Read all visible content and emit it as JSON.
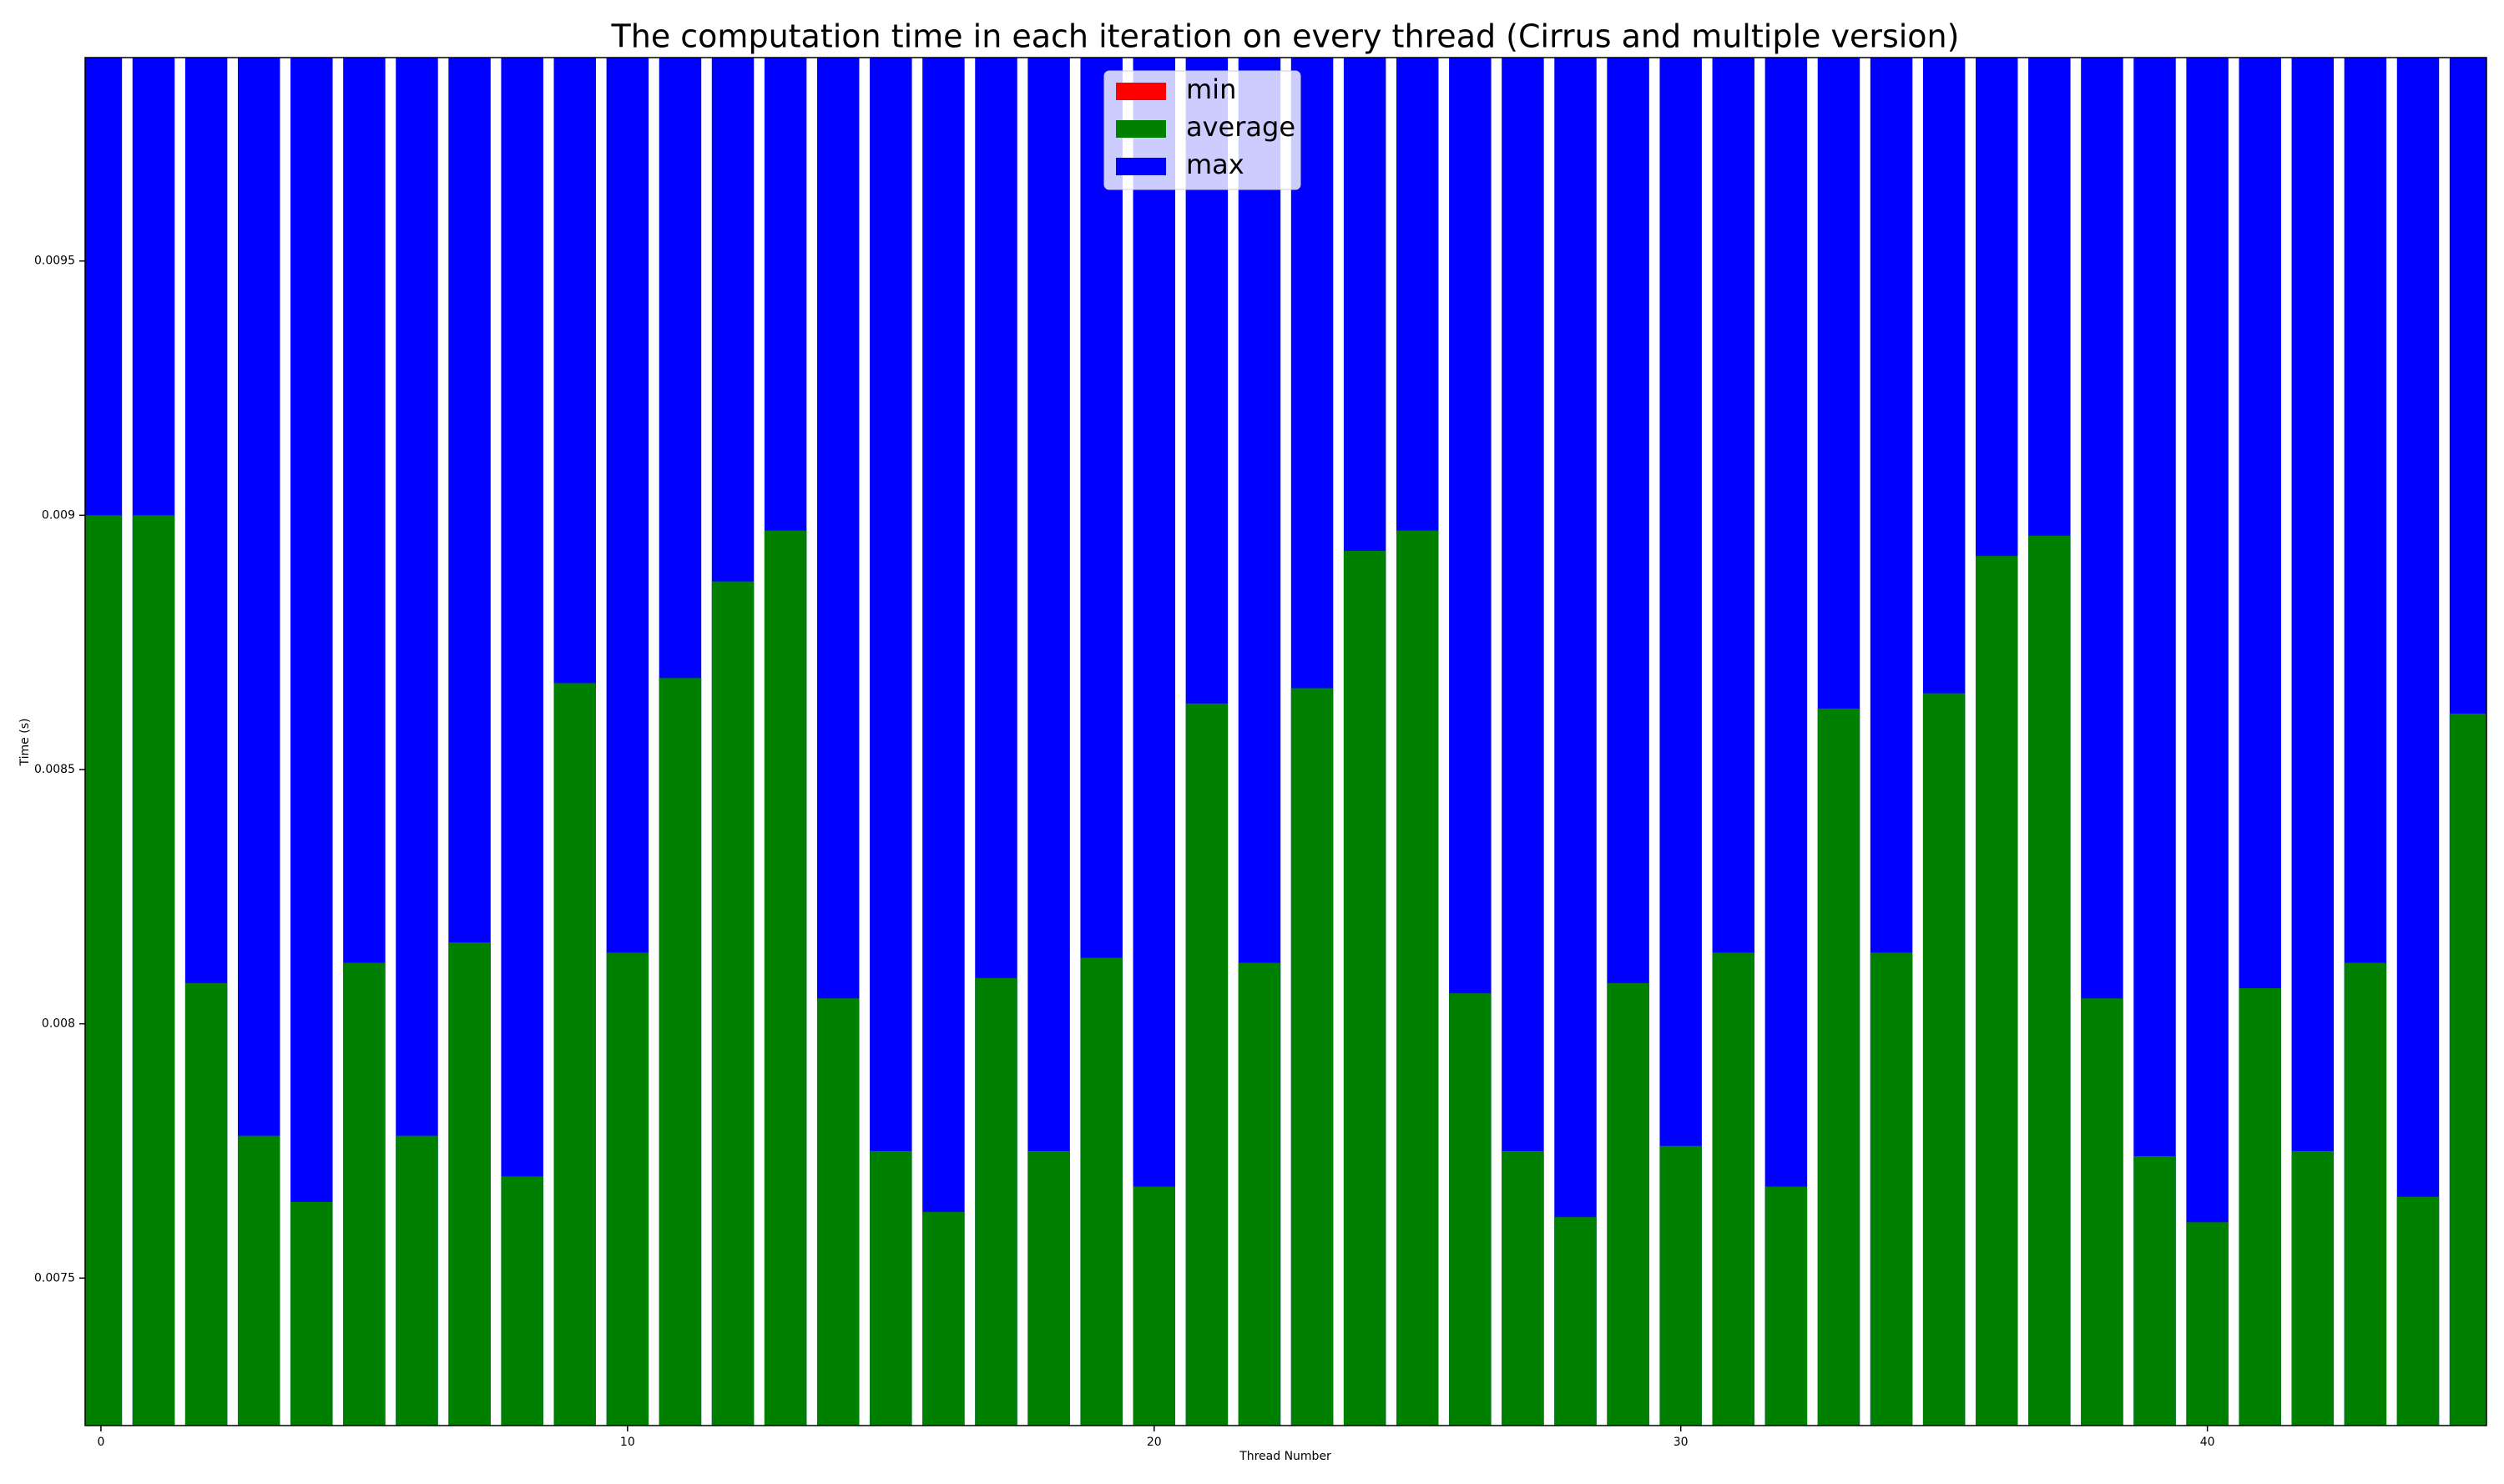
{
  "chart_data": {
    "type": "bar",
    "title": "The computation time in each iteration on every thread (Cirrus and multiple version)",
    "xlabel": "Thread Number",
    "ylabel": "Time (s)",
    "x": [
      0,
      1,
      2,
      3,
      4,
      5,
      6,
      7,
      8,
      9,
      10,
      11,
      12,
      13,
      14,
      15,
      16,
      17,
      18,
      19,
      20,
      21,
      22,
      23,
      24,
      25,
      26,
      27,
      28,
      29,
      30,
      31,
      32,
      33,
      34,
      35,
      36,
      37,
      38,
      39,
      40,
      41,
      42,
      43,
      44,
      45
    ],
    "series": [
      {
        "name": "min",
        "color": "#ff0000",
        "values": [
          null,
          null,
          null,
          null,
          null,
          null,
          null,
          null,
          null,
          null,
          null,
          null,
          null,
          null,
          null,
          null,
          null,
          null,
          null,
          null,
          null,
          null,
          null,
          null,
          null,
          null,
          null,
          null,
          null,
          null,
          null,
          null,
          null,
          null,
          null,
          null,
          null,
          null,
          null,
          null,
          null,
          null,
          null,
          null,
          null,
          null
        ]
      },
      {
        "name": "average",
        "color": "#008000",
        "values": [
          0.009,
          0.009,
          0.00808,
          0.00778,
          0.00765,
          0.00812,
          0.00778,
          0.00816,
          0.0077,
          0.00867,
          0.00814,
          0.00868,
          0.00887,
          0.00897,
          0.00805,
          0.00775,
          0.00763,
          0.00809,
          0.00775,
          0.00813,
          0.00768,
          0.00863,
          0.00812,
          0.00866,
          0.00893,
          0.00897,
          0.00806,
          0.00775,
          0.00762,
          0.00808,
          0.00776,
          0.00814,
          0.00768,
          0.00862,
          0.00814,
          0.00865,
          0.00892,
          0.00896,
          0.00805,
          0.00774,
          0.00761,
          0.00807,
          0.00775,
          0.00812,
          0.00766,
          0.00861
        ]
      },
      {
        "name": "max",
        "color": "#0000ff",
        "values": [
          0.01,
          0.01,
          0.01,
          0.01,
          0.01,
          0.01,
          0.01,
          0.01,
          0.01,
          0.01,
          0.01,
          0.01,
          0.01,
          0.01,
          0.01,
          0.01,
          0.01,
          0.01,
          0.01,
          0.01,
          0.01,
          0.01,
          0.01,
          0.01,
          0.01,
          0.01,
          0.01,
          0.01,
          0.01,
          0.01,
          0.01,
          0.01,
          0.01,
          0.01,
          0.01,
          0.01,
          0.01,
          0.01,
          0.01,
          0.01,
          0.01,
          0.01,
          0.01,
          0.01,
          0.01,
          0.01
        ]
      }
    ],
    "xlim": [
      -0.3,
      45.3
    ],
    "xticks": [
      0,
      10,
      20,
      30,
      40
    ],
    "ylim": [
      0.00721,
      0.0099
    ],
    "yticks": [
      0.0075,
      0.008,
      0.0085,
      0.009,
      0.0095
    ],
    "legend": "upper center"
  }
}
